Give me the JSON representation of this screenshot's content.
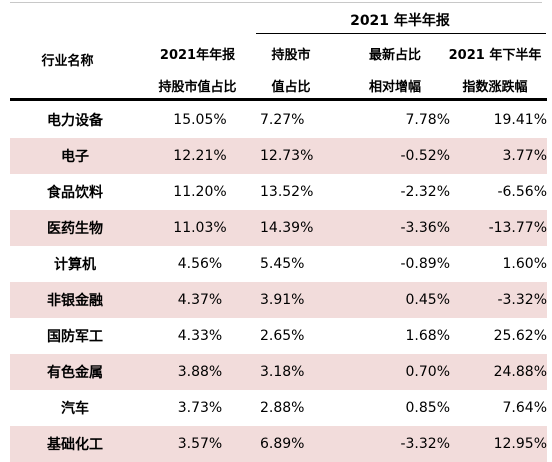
{
  "header": {
    "group_label": "2021 年半年报",
    "industry": "行业名称",
    "col1_line1": "2021年年报",
    "col1_line2": "持股市值占比",
    "col2_line1": "持股市",
    "col2_line2": "值占比",
    "col3_line1": "最新占比",
    "col3_line2": "相对增幅",
    "col4_line1": "2021 年下半年",
    "col4_line2": "指数涨跌幅"
  },
  "rows": [
    {
      "industry": "电力设备",
      "annual_share": "15.05%",
      "half_share": "7.27%",
      "change": "7.78%",
      "index_change": "19.41%"
    },
    {
      "industry": "电子",
      "annual_share": "12.21%",
      "half_share": "12.73%",
      "change": "-0.52%",
      "index_change": "3.77%"
    },
    {
      "industry": "食品饮料",
      "annual_share": "11.20%",
      "half_share": "13.52%",
      "change": "-2.32%",
      "index_change": "-6.56%"
    },
    {
      "industry": "医药生物",
      "annual_share": "11.03%",
      "half_share": "14.39%",
      "change": "-3.36%",
      "index_change": "-13.77%"
    },
    {
      "industry": "计算机",
      "annual_share": "4.56%",
      "half_share": "5.45%",
      "change": "-0.89%",
      "index_change": "1.60%"
    },
    {
      "industry": "非银金融",
      "annual_share": "4.37%",
      "half_share": "3.91%",
      "change": "0.45%",
      "index_change": "-3.32%"
    },
    {
      "industry": "国防军工",
      "annual_share": "4.33%",
      "half_share": "2.65%",
      "change": "1.68%",
      "index_change": "25.62%"
    },
    {
      "industry": "有色金属",
      "annual_share": "3.88%",
      "half_share": "3.18%",
      "change": "0.70%",
      "index_change": "24.88%"
    },
    {
      "industry": "汽车",
      "annual_share": "3.73%",
      "half_share": "2.88%",
      "change": "0.85%",
      "index_change": "7.64%"
    },
    {
      "industry": "基础化工",
      "annual_share": "3.57%",
      "half_share": "6.89%",
      "change": "-3.32%",
      "index_change": "12.95%"
    }
  ],
  "colors": {
    "shade": "#f2dcdb",
    "rule": "#000000"
  }
}
